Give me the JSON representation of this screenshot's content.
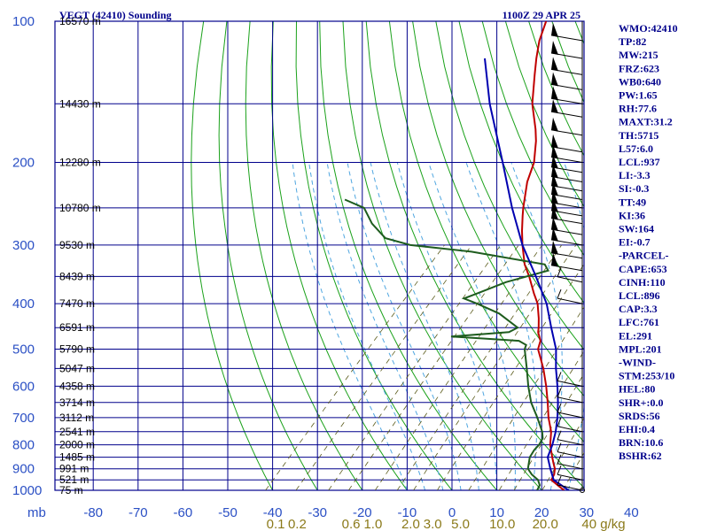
{
  "header": {
    "title": "VEGT (42410) Sounding",
    "time": "1100Z 29 APR 25"
  },
  "chart_data": {
    "type": "line",
    "title": "VEGT (42410) Sounding",
    "xlabel": "mb",
    "pressure_levels": [
      100,
      200,
      300,
      400,
      500,
      600,
      700,
      800,
      900,
      1000
    ],
    "isobars": [
      100,
      150,
      200,
      250,
      300,
      350,
      400,
      450,
      500,
      550,
      600,
      650,
      700,
      750,
      800,
      850,
      900,
      950,
      1000
    ],
    "temp_ticks": [
      -80,
      -70,
      -60,
      -50,
      -40,
      -30,
      -20,
      -10,
      0,
      10,
      20,
      30,
      40
    ],
    "temp_tick_labels": [
      "-80",
      "-70",
      "-60",
      "-50",
      "-40",
      "-30",
      "-20",
      "-10",
      "0",
      "10",
      "20",
      "30",
      "40"
    ],
    "xlim": [
      -80,
      40
    ],
    "ylim": [
      1000,
      100
    ],
    "mixing_ratio_labels": [
      {
        "text": "0.1",
        "temp": -39.3
      },
      {
        "text": "0.2",
        "temp": -34.5
      },
      {
        "text": "0.6",
        "temp": -22.5
      },
      {
        "text": "1.0",
        "temp": -17.6
      },
      {
        "text": "2.0",
        "temp": -9.2
      },
      {
        "text": "3.0",
        "temp": -4.3
      },
      {
        "text": "5.0",
        "temp": 1.9
      },
      {
        "text": "10.0",
        "temp": 11.2
      },
      {
        "text": "20.0",
        "temp": 20.8
      },
      {
        "text": "40 g/kg",
        "temp": 33.8
      }
    ],
    "heights": [
      {
        "p": 100,
        "label": "16570 m"
      },
      {
        "p": 150,
        "label": "14430 m"
      },
      {
        "p": 200,
        "label": "12280 m"
      },
      {
        "p": 250,
        "label": "10780 m"
      },
      {
        "p": 300,
        "label": "9530 m"
      },
      {
        "p": 350,
        "label": "8439 m"
      },
      {
        "p": 400,
        "label": "7470 m"
      },
      {
        "p": 450,
        "label": "6591 m"
      },
      {
        "p": 500,
        "label": "5790 m"
      },
      {
        "p": 550,
        "label": "5047 m"
      },
      {
        "p": 600,
        "label": "4358 m"
      },
      {
        "p": 650,
        "label": "3714 m"
      },
      {
        "p": 700,
        "label": "3112 m"
      },
      {
        "p": 750,
        "label": "2541 m"
      },
      {
        "p": 800,
        "label": "2000 m"
      },
      {
        "p": 850,
        "label": "1485 m"
      },
      {
        "p": 900,
        "label": "991 m"
      },
      {
        "p": 950,
        "label": "521 m"
      },
      {
        "p": 1000,
        "label": "75 m"
      }
    ],
    "series": [
      {
        "color": "#c00000",
        "points": [
          [
            1000,
            25.0
          ],
          [
            975,
            22.5
          ],
          [
            950,
            20.0
          ],
          [
            925,
            19.5
          ],
          [
            900,
            18.5
          ],
          [
            875,
            17.0
          ],
          [
            850,
            15.5
          ],
          [
            800,
            12.5
          ],
          [
            750,
            10.0
          ],
          [
            700,
            6.5
          ],
          [
            650,
            3.2
          ],
          [
            600,
            -0.5
          ],
          [
            550,
            -4.8
          ],
          [
            500,
            -10.0
          ],
          [
            480,
            -11.2
          ],
          [
            460,
            -13.5
          ],
          [
            450,
            -14.3
          ],
          [
            430,
            -16.2
          ],
          [
            400,
            -19.5
          ],
          [
            380,
            -22.5
          ],
          [
            350,
            -27.0
          ],
          [
            330,
            -30.5
          ],
          [
            300,
            -35.0
          ],
          [
            280,
            -38.0
          ],
          [
            260,
            -41.0
          ],
          [
            250,
            -42.5
          ],
          [
            220,
            -47.0
          ],
          [
            200,
            -49.5
          ],
          [
            180,
            -53.5
          ],
          [
            170,
            -56.0
          ],
          [
            150,
            -62.0
          ],
          [
            130,
            -67.5
          ],
          [
            120,
            -70.5
          ],
          [
            110,
            -73.5
          ],
          [
            100,
            -76.0
          ]
        ]
      },
      {
        "color": "#1e5c1e",
        "points": [
          [
            1000,
            19.0
          ],
          [
            975,
            18.5
          ],
          [
            950,
            17.0
          ],
          [
            925,
            14.5
          ],
          [
            900,
            12.5
          ],
          [
            875,
            11.5
          ],
          [
            850,
            10.5
          ],
          [
            820,
            10.0
          ],
          [
            800,
            10.0
          ],
          [
            775,
            9.5
          ],
          [
            750,
            8.0
          ],
          [
            700,
            4.0
          ],
          [
            650,
            -0.5
          ],
          [
            600,
            -4.5
          ],
          [
            550,
            -8.5
          ],
          [
            500,
            -13.0
          ],
          [
            490,
            -13.5
          ],
          [
            480,
            -16.0
          ],
          [
            475,
            -24.0
          ],
          [
            470,
            -32.0
          ],
          [
            460,
            -20.0
          ],
          [
            450,
            -19.0
          ],
          [
            420,
            -26.0
          ],
          [
            400,
            -33.0
          ],
          [
            390,
            -37.0
          ],
          [
            380,
            -35.0
          ],
          [
            360,
            -31.0
          ],
          [
            340,
            -24.0
          ],
          [
            330,
            -26.0
          ],
          [
            310,
            -45.0
          ],
          [
            300,
            -60.0
          ],
          [
            290,
            -67.0
          ],
          [
            270,
            -73.0
          ],
          [
            250,
            -78.0
          ],
          [
            240,
            -84.0
          ]
        ]
      },
      {
        "color": "#0000b0",
        "points": [
          [
            1000,
            26.0
          ],
          [
            950,
            20.5
          ],
          [
            900,
            17.5
          ],
          [
            850,
            14.5
          ],
          [
            800,
            13.0
          ],
          [
            750,
            11.0
          ],
          [
            700,
            8.5
          ],
          [
            650,
            5.5
          ],
          [
            600,
            2.0
          ],
          [
            550,
            -2.0
          ],
          [
            500,
            -6.0
          ],
          [
            450,
            -11.5
          ],
          [
            400,
            -17.5
          ],
          [
            350,
            -25.5
          ],
          [
            300,
            -35.0
          ],
          [
            250,
            -45.0
          ],
          [
            200,
            -56.5
          ],
          [
            150,
            -71.5
          ],
          [
            120,
            -82.0
          ]
        ]
      }
    ]
  },
  "indices": [
    "WMO:42410",
    "TP:82",
    "MW:215",
    "FRZ:623",
    "WB0:640",
    "PW:1.65",
    "RH:77.6",
    "MAXT:31.2",
    "TH:5715",
    "L57:6.0",
    "LCL:937",
    "LI:-3.3",
    "SI:-0.3",
    "TT:49",
    "KI:36",
    "SW:164",
    "EI:-0.7",
    "-PARCEL-",
    "CAPE:653",
    "CINH:110",
    "LCL:896",
    "CAP:3.3",
    "LFC:761",
    "EL:291",
    "MPL:201",
    "-WIND-",
    "STM:253/10",
    "HEL:80",
    "SHR+:0.0",
    "SRDS:56",
    "EHI:0.4",
    "BRN:10.6",
    "BSHR:62"
  ],
  "colors": {
    "grid": "#00008b",
    "dry_adiabat": "#1aa11a",
    "moist_adiabat": "#4fa6e0",
    "mixing_ratio": "#5a5a1a",
    "temperature": "#c00000",
    "dewpoint": "#1e5c1e",
    "parcel": "#0000b0"
  }
}
